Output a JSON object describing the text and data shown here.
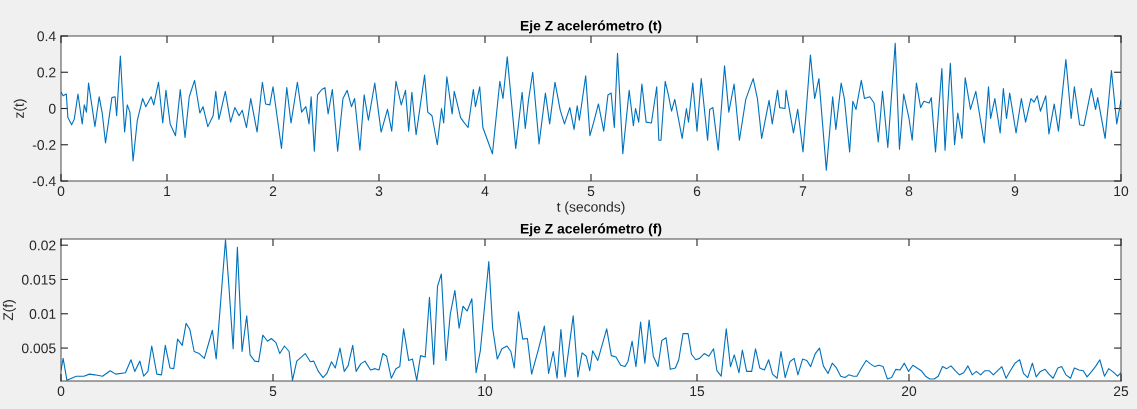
{
  "chart_data": [
    {
      "type": "line",
      "title": "Eje Z acelerómetro (t)",
      "xlabel": "t (seconds)",
      "ylabel": "z(t)",
      "marker": "none",
      "line_style": "solid",
      "xlim": [
        0,
        10
      ],
      "ylim": [
        -0.4,
        0.4
      ],
      "xticks": [
        0,
        1,
        2,
        3,
        4,
        5,
        6,
        7,
        8,
        9,
        10
      ],
      "yticks": [
        -0.4,
        -0.2,
        0,
        0.2,
        0.4
      ],
      "series": [
        {
          "color": "#0072bd",
          "x": [
            0,
            0.02,
            0.05,
            0.065,
            0.1,
            0.125,
            0.16,
            0.2,
            0.22,
            0.24,
            0.26,
            0.32,
            0.36,
            0.39,
            0.42,
            0.48,
            0.51,
            0.525,
            0.56,
            0.6,
            0.625,
            0.65,
            0.68,
            0.72,
            0.77,
            0.8,
            0.85,
            0.875,
            0.92,
            0.96,
            0.99,
            1.03,
            1.08,
            1.125,
            1.17,
            1.21,
            1.26,
            1.31,
            1.34,
            1.385,
            1.435,
            1.46,
            1.49,
            1.55,
            1.6,
            1.64,
            1.68,
            1.71,
            1.75,
            1.79,
            1.85,
            1.89,
            1.9,
            1.93,
            1.97,
            2.0,
            2.08,
            2.13,
            2.17,
            2.23,
            2.27,
            2.31,
            2.34,
            2.36,
            2.39,
            2.42,
            2.46,
            2.49,
            2.52,
            2.56,
            2.61,
            2.66,
            2.7,
            2.74,
            2.77,
            2.82,
            2.86,
            2.9,
            2.96,
            3.02,
            3.08,
            3.12,
            3.16,
            3.21,
            3.25,
            3.28,
            3.31,
            3.35,
            3.41,
            3.43,
            3.46,
            3.5,
            3.55,
            3.59,
            3.61,
            3.64,
            3.69,
            3.71,
            3.77,
            3.8,
            3.84,
            3.89,
            3.91,
            3.95,
            3.98,
            4.07,
            4.14,
            4.17,
            4.21,
            4.29,
            4.35,
            4.38,
            4.41,
            4.45,
            4.51,
            4.57,
            4.61,
            4.66,
            4.71,
            4.75,
            4.8,
            4.84,
            4.87,
            4.89,
            4.95,
            4.99,
            5.03,
            5.07,
            5.12,
            5.16,
            5.19,
            5.22,
            5.25,
            5.3,
            5.36,
            5.4,
            5.42,
            5.45,
            5.48,
            5.52,
            5.57,
            5.62,
            5.64,
            5.66,
            5.7,
            5.73,
            5.76,
            5.79,
            5.86,
            5.9,
            5.92,
            5.96,
            6.0,
            6.04,
            6.1,
            6.12,
            6.15,
            6.2,
            6.26,
            6.3,
            6.35,
            6.4,
            6.46,
            6.53,
            6.57,
            6.61,
            6.68,
            6.71,
            6.76,
            6.78,
            6.83,
            6.84,
            6.91,
            6.95,
            7.0,
            7.07,
            7.11,
            7.15,
            7.22,
            7.28,
            7.31,
            7.36,
            7.39,
            7.44,
            7.47,
            7.5,
            7.55,
            7.58,
            7.63,
            7.67,
            7.71,
            7.75,
            7.8,
            7.87,
            7.91,
            7.95,
            8.0,
            8.03,
            8.07,
            8.11,
            8.14,
            8.19,
            8.21,
            8.25,
            8.31,
            8.34,
            8.39,
            8.43,
            8.46,
            8.5,
            8.53,
            8.58,
            8.63,
            8.71,
            8.75,
            8.77,
            8.81,
            8.86,
            8.89,
            8.92,
            8.95,
            9.01,
            9.06,
            9.1,
            9.15,
            9.18,
            9.21,
            9.24,
            9.29,
            9.32,
            9.37,
            9.41,
            9.48,
            9.53,
            9.56,
            9.61,
            9.65,
            9.72,
            9.76,
            9.78,
            9.85,
            9.91,
            9.96,
            10.0
          ],
          "values": [
            0.09,
            0.07,
            0.08,
            -0.05,
            -0.09,
            -0.06,
            0.08,
            -0.085,
            0.02,
            -0.02,
            0.14,
            -0.1,
            0.065,
            -0.03,
            -0.19,
            0.06,
            0.065,
            -0.04,
            0.29,
            -0.13,
            0.02,
            -0.02,
            -0.29,
            -0.065,
            0.055,
            0.01,
            0.065,
            0.02,
            0.145,
            -0.08,
            0.1,
            -0.085,
            -0.15,
            0.105,
            -0.16,
            0.065,
            0.155,
            -0.025,
            0.01,
            -0.1,
            -0.04,
            0.095,
            -0.06,
            0.095,
            -0.075,
            0.005,
            -0.04,
            -0.01,
            -0.105,
            0.055,
            -0.13,
            0.095,
            0.145,
            0.025,
            0.02,
            0.12,
            -0.22,
            0.115,
            -0.08,
            0.145,
            -0.02,
            0.01,
            -0.085,
            0.065,
            -0.235,
            0.075,
            0.105,
            0.115,
            -0.03,
            0.105,
            -0.235,
            0.055,
            0.1,
            0.01,
            0.055,
            -0.23,
            0.075,
            -0.065,
            0.14,
            -0.13,
            -0.005,
            -0.125,
            0.15,
            0.02,
            0.1,
            -0.125,
            0.09,
            -0.145,
            0.1,
            0.185,
            -0.02,
            -0.04,
            -0.2,
            0.0,
            -0.08,
            0.175,
            -0.03,
            0.095,
            -0.05,
            -0.075,
            -0.105,
            0.105,
            0.01,
            0.12,
            -0.105,
            -0.25,
            0.15,
            0.055,
            0.285,
            -0.22,
            0.09,
            -0.11,
            0.045,
            0.2,
            -0.195,
            0.085,
            -0.085,
            0.145,
            -0.01,
            -0.085,
            0.005,
            -0.115,
            0.015,
            -0.065,
            0.18,
            -0.15,
            -0.065,
            0.025,
            -0.125,
            0.075,
            0.085,
            -0.105,
            0.305,
            -0.25,
            0.1,
            -0.095,
            0.0,
            -0.075,
            0.135,
            -0.075,
            -0.08,
            0.12,
            -0.175,
            -0.175,
            0.15,
            0.075,
            -0.015,
            0.05,
            -0.165,
            0.0,
            -0.075,
            0.14,
            -0.125,
            0.165,
            -0.175,
            -0.005,
            0.005,
            -0.23,
            0.235,
            -0.02,
            0.135,
            -0.175,
            0.05,
            0.165,
            0.055,
            -0.165,
            0.045,
            -0.085,
            0.1,
            0.005,
            0.0,
            0.1,
            -0.135,
            -0.005,
            -0.24,
            0.295,
            0.055,
            0.165,
            -0.34,
            0.065,
            -0.115,
            0.14,
            0.055,
            -0.24,
            0.04,
            -0.005,
            0.155,
            0.055,
            0.065,
            0.03,
            -0.185,
            0.095,
            -0.215,
            0.36,
            -0.225,
            0.08,
            -0.055,
            -0.175,
            0.14,
            0.005,
            0.04,
            0.03,
            0.06,
            -0.24,
            0.22,
            -0.23,
            0.25,
            -0.2,
            -0.025,
            -0.165,
            0.17,
            -0.005,
            0.095,
            -0.19,
            0.12,
            -0.055,
            0.055,
            -0.135,
            0.11,
            -0.055,
            0.085,
            -0.135,
            0.055,
            -0.075,
            0.055,
            0.035,
            0.07,
            -0.015,
            0.07,
            -0.14,
            0.025,
            -0.125,
            0.27,
            -0.055,
            0.12,
            -0.09,
            -0.095,
            0.11,
            -0.005,
            0.06,
            -0.165,
            0.21,
            -0.085,
            0.045
          ]
        }
      ]
    },
    {
      "type": "line",
      "title": "Eje Z acelerómetro (f)",
      "ylabel": "Z(f)",
      "marker": "none",
      "line_style": "solid",
      "xlim": [
        0,
        25
      ],
      "ylim": [
        0.0002,
        0.0209
      ],
      "xticks": [
        0,
        5,
        10,
        15,
        20,
        25
      ],
      "yticks": [
        0.005,
        0.01,
        0.015,
        0.02
      ],
      "series": [
        {
          "color": "#0072bd",
          "x": [
            0,
            0.05,
            0.14,
            0.36,
            0.54,
            0.67,
            0.8,
            0.98,
            1.16,
            1.29,
            1.52,
            1.65,
            1.74,
            1.86,
            1.95,
            2.05,
            2.14,
            2.26,
            2.37,
            2.46,
            2.57,
            2.66,
            2.75,
            2.86,
            2.95,
            3.04,
            3.14,
            3.26,
            3.38,
            3.57,
            3.66,
            3.88,
            3.96,
            4.06,
            4.16,
            4.27,
            4.38,
            4.46,
            4.57,
            4.66,
            4.76,
            4.87,
            4.96,
            5.07,
            5.16,
            5.27,
            5.38,
            5.46,
            5.56,
            5.76,
            5.88,
            5.96,
            6.07,
            6.18,
            6.27,
            6.38,
            6.47,
            6.58,
            6.68,
            6.77,
            6.88,
            6.96,
            7.07,
            7.17,
            7.3,
            7.41,
            7.5,
            7.59,
            7.68,
            7.79,
            7.9,
            7.99,
            8.08,
            8.2,
            8.29,
            8.39,
            8.48,
            8.59,
            8.69,
            8.79,
            8.88,
            8.97,
            9.08,
            9.18,
            9.29,
            9.39,
            9.48,
            9.58,
            9.69,
            9.79,
            9.89,
            10.09,
            10.18,
            10.29,
            10.4,
            10.52,
            10.61,
            10.69,
            10.79,
            10.89,
            11.0,
            11.1,
            11.25,
            11.4,
            11.5,
            11.61,
            11.7,
            11.79,
            11.89,
            12.08,
            12.19,
            12.29,
            12.39,
            12.47,
            12.54,
            12.66,
            12.87,
            12.98,
            13.09,
            13.2,
            13.3,
            13.37,
            13.47,
            13.56,
            13.67,
            13.77,
            13.87,
            13.97,
            14.08,
            14.17,
            14.27,
            14.37,
            14.49,
            14.57,
            14.67,
            14.79,
            14.87,
            14.97,
            15.06,
            15.17,
            15.28,
            15.39,
            15.47,
            15.57,
            15.69,
            15.79,
            15.88,
            15.99,
            16.07,
            16.17,
            16.29,
            16.38,
            16.48,
            16.59,
            16.69,
            16.78,
            16.89,
            16.98,
            17.08,
            17.19,
            17.29,
            17.38,
            17.49,
            17.59,
            17.68,
            17.79,
            17.89,
            17.98,
            18.09,
            18.19,
            18.28,
            18.39,
            18.49,
            18.58,
            18.69,
            18.77,
            18.88,
            18.99,
            19.09,
            19.19,
            19.29,
            19.39,
            19.49,
            19.59,
            19.69,
            19.79,
            19.89,
            19.99,
            20.09,
            20.19,
            20.29,
            20.39,
            20.49,
            20.59,
            20.69,
            20.79,
            20.89,
            20.99,
            21.09,
            21.19,
            21.29,
            21.39,
            21.49,
            21.59,
            21.69,
            21.79,
            21.89,
            21.99,
            22.09,
            22.19,
            22.29,
            22.39,
            22.5,
            22.61,
            22.7,
            22.8,
            22.91,
            23.0,
            23.1,
            23.21,
            23.3,
            23.4,
            23.51,
            23.6,
            23.7,
            23.81,
            23.9,
            24.01,
            24.11,
            24.2,
            24.31,
            24.41,
            24.5,
            24.61,
            24.71,
            24.82,
            24.92,
            25.0
          ],
          "values": [
            0.0018,
            0.0035,
            0.0003,
            0.0009,
            0.0009,
            0.0012,
            0.0011,
            0.0009,
            0.0017,
            0.0012,
            0.0014,
            0.0033,
            0.0016,
            0.0031,
            0.0009,
            0.0016,
            0.0053,
            0.0012,
            0.0011,
            0.0054,
            0.0021,
            0.002,
            0.0063,
            0.0054,
            0.0086,
            0.0077,
            0.0045,
            0.0042,
            0.0035,
            0.0076,
            0.0034,
            0.0208,
            0.014,
            0.0049,
            0.0197,
            0.0045,
            0.0097,
            0.004,
            0.0031,
            0.003,
            0.0069,
            0.006,
            0.0064,
            0.0058,
            0.0042,
            0.0053,
            0.0045,
            0.0003,
            0.0031,
            0.0042,
            0.003,
            0.0031,
            0.0016,
            0.0007,
            0.0013,
            0.003,
            0.0021,
            0.005,
            0.0016,
            0.0024,
            0.0054,
            0.0016,
            0.0027,
            0.0031,
            0.0018,
            0.002,
            0.0018,
            0.0042,
            0.0038,
            0.0006,
            0.002,
            0.0023,
            0.0078,
            0.0032,
            0.0034,
            0.0003,
            0.0039,
            0.0037,
            0.0124,
            0.0026,
            0.014,
            0.0158,
            0.0032,
            0.0099,
            0.0134,
            0.0079,
            0.0111,
            0.0104,
            0.0122,
            0.0014,
            0.0046,
            0.0176,
            0.0079,
            0.0034,
            0.0049,
            0.0053,
            0.0045,
            0.0021,
            0.0103,
            0.0063,
            0.0064,
            0.0012,
            0.0046,
            0.0082,
            0.0013,
            0.0045,
            0.0006,
            0.0077,
            0.0008,
            0.0097,
            0.0008,
            0.0043,
            0.0038,
            0.0017,
            0.0046,
            0.0032,
            0.0078,
            0.0039,
            0.0037,
            0.0025,
            0.0023,
            0.003,
            0.006,
            0.0023,
            0.0088,
            0.0028,
            0.0091,
            0.0038,
            0.0023,
            0.0061,
            0.0065,
            0.0019,
            0.0021,
            0.0033,
            0.0071,
            0.0071,
            0.0041,
            0.0033,
            0.0035,
            0.0042,
            0.0038,
            0.0049,
            0.0017,
            0.0009,
            0.0078,
            0.0023,
            0.004,
            0.0014,
            0.0047,
            0.0016,
            0.0016,
            0.0049,
            0.0021,
            0.0018,
            0.0033,
            0.0012,
            0.0006,
            0.0045,
            0.0007,
            0.003,
            0.0035,
            0.0011,
            0.0034,
            0.0032,
            0.0023,
            0.0042,
            0.005,
            0.0024,
            0.0013,
            0.0028,
            0.0022,
            0.0009,
            0.0007,
            0.0011,
            0.0009,
            0.0009,
            0.0021,
            0.0032,
            0.0027,
            0.0023,
            0.0025,
            0.0023,
            0.0005,
            0.0007,
            0.0019,
            0.0018,
            0.0028,
            0.0016,
            0.0025,
            0.0021,
            0.0017,
            0.0009,
            0.0005,
            0.0005,
            0.0009,
            0.0023,
            0.002,
            0.0024,
            0.0017,
            0.0011,
            0.0014,
            0.0024,
            0.0011,
            0.0016,
            0.0011,
            0.0017,
            0.0017,
            0.0011,
            0.0017,
            0.0023,
            0.0006,
            0.0017,
            0.0028,
            0.0033,
            0.0013,
            0.0007,
            0.0028,
            0.0008,
            0.0016,
            0.0019,
            0.0012,
            0.0006,
            0.0021,
            0.0023,
            0.0011,
            0.0006,
            0.0021,
            0.0018,
            0.0017,
            0.0008,
            0.0016,
            0.0024,
            0.0033,
            0.0009,
            0.002,
            0.0015,
            0.0009,
            0.0014
          ]
        }
      ]
    }
  ]
}
